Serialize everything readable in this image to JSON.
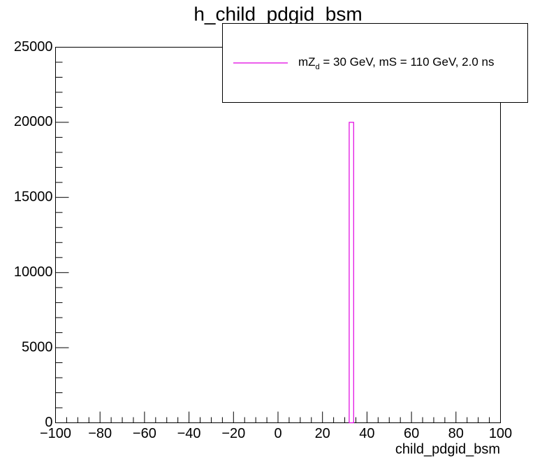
{
  "chart_data": {
    "type": "histogram",
    "title": "h_child_pdgid_bsm",
    "x_label": "child_pdgid_bsm",
    "bins": [
      32,
      34
    ],
    "values": [
      20000
    ],
    "color": "#e000e0",
    "legend_text": [
      "mZ",
      "d",
      " = 30 GeV, mS = 110 GeV, 2.0 ns"
    ],
    "xlim": [
      -100,
      100
    ],
    "xticks": [
      {
        "value": -100,
        "label": "−100"
      },
      {
        "value": -80,
        "label": "−80"
      },
      {
        "value": -60,
        "label": "−60"
      },
      {
        "value": -40,
        "label": "−40"
      },
      {
        "value": -20,
        "label": "−20"
      },
      0,
      20,
      40,
      60,
      80,
      100
    ],
    "ylim": [
      0,
      25000
    ],
    "yticks": [
      0,
      5000,
      10000,
      15000,
      20000,
      25000
    ]
  }
}
